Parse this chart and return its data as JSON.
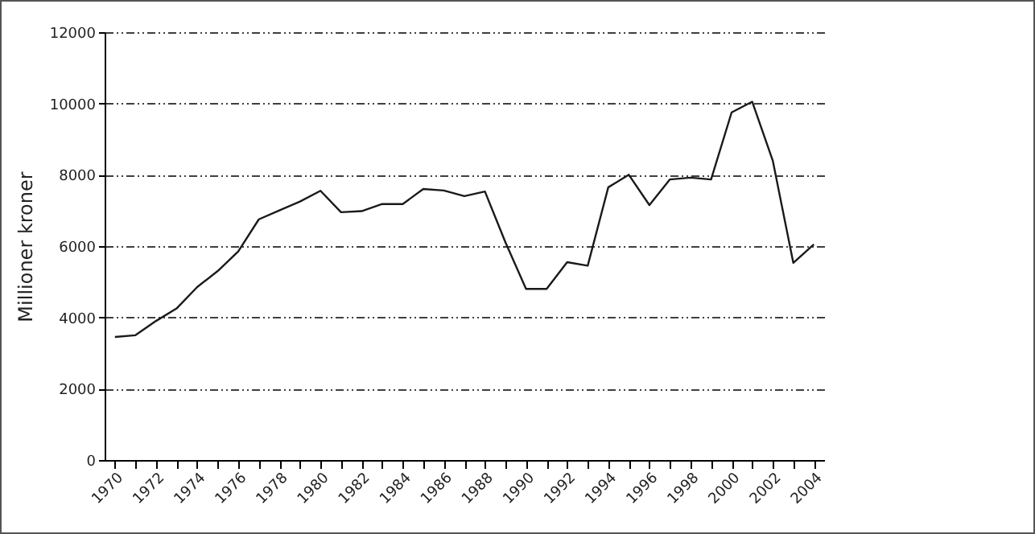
{
  "chart_data": {
    "type": "line",
    "ylabel": "Millioner kroner",
    "categories": [
      "1970",
      null,
      "1972",
      null,
      "1974",
      null,
      "1976",
      null,
      "1978",
      null,
      "1980",
      null,
      "1982",
      null,
      "1984",
      null,
      "1986",
      null,
      "1988",
      null,
      "1990",
      null,
      "1992",
      null,
      "1994",
      null,
      "1996",
      null,
      "1998",
      null,
      "2000",
      null,
      "2002",
      null,
      "2004"
    ],
    "series": [
      {
        "color": "#1a1a1a",
        "values": [
          3450,
          3500,
          3900,
          4250,
          4850,
          5300,
          5850,
          6750,
          7000,
          7250,
          7550,
          6950,
          6980,
          7180,
          7180,
          7600,
          7560,
          7400,
          7530,
          6100,
          4800,
          4800,
          5550,
          5450,
          7650,
          8000,
          7150,
          7870,
          7920,
          7870,
          9750,
          10050,
          8400,
          5530,
          6050
        ]
      }
    ],
    "ylim": [
      0,
      12000
    ],
    "yticks": [
      0,
      2000,
      4000,
      6000,
      8000,
      10000,
      12000
    ],
    "grid": "y",
    "legend": false,
    "marker": "none",
    "line_style": "solid"
  }
}
